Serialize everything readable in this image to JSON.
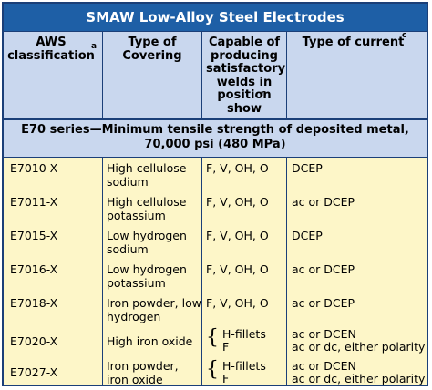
{
  "table": {
    "title": "SMAW Low-Alloy Steel Electrodes",
    "headers": {
      "aws": "AWS classification",
      "aws_note": "a",
      "covering": "Type of Covering",
      "capable": "Capable of producing satisfactory welds in position show",
      "capable_note": "n",
      "current": "Type of current",
      "current_note": "c"
    },
    "series_label": "E70 series—Minimum tensile strength of deposited metal, 70,000 psi (480 MPa)",
    "rows": [
      {
        "aws": "E7010-X",
        "covering": "High cellulose sodium",
        "position": "F, V, OH, O",
        "current": "DCEP"
      },
      {
        "aws": "E7011-X",
        "covering": "High cellulose potassium",
        "position": "F, V, OH, O",
        "current": "ac or DCEP"
      },
      {
        "aws": "E7015-X",
        "covering": "Low hydrogen sodium",
        "position": "F, V, OH, O",
        "current": "DCEP"
      },
      {
        "aws": "E7016-X",
        "covering": "Low hydrogen potassium",
        "position": "F, V, OH, O",
        "current": "ac or DCEP"
      },
      {
        "aws": "E7018-X",
        "covering": "Iron powder, low hydrogen",
        "position": "F, V, OH, O",
        "current": "ac or DCEP"
      },
      {
        "aws": "E7020-X",
        "covering": "High iron oxide",
        "position_a": "H-fillets",
        "position_b": "F",
        "current_a": "ac or DCEN",
        "current_b": "ac or dc, either polarity"
      },
      {
        "aws": "E7027-X",
        "covering": "Iron powder, iron oxide",
        "position_a": "H-fillets",
        "position_b": "F",
        "current_a": "ac or DCEN",
        "current_b": "ac or dc, either polarity"
      }
    ]
  }
}
